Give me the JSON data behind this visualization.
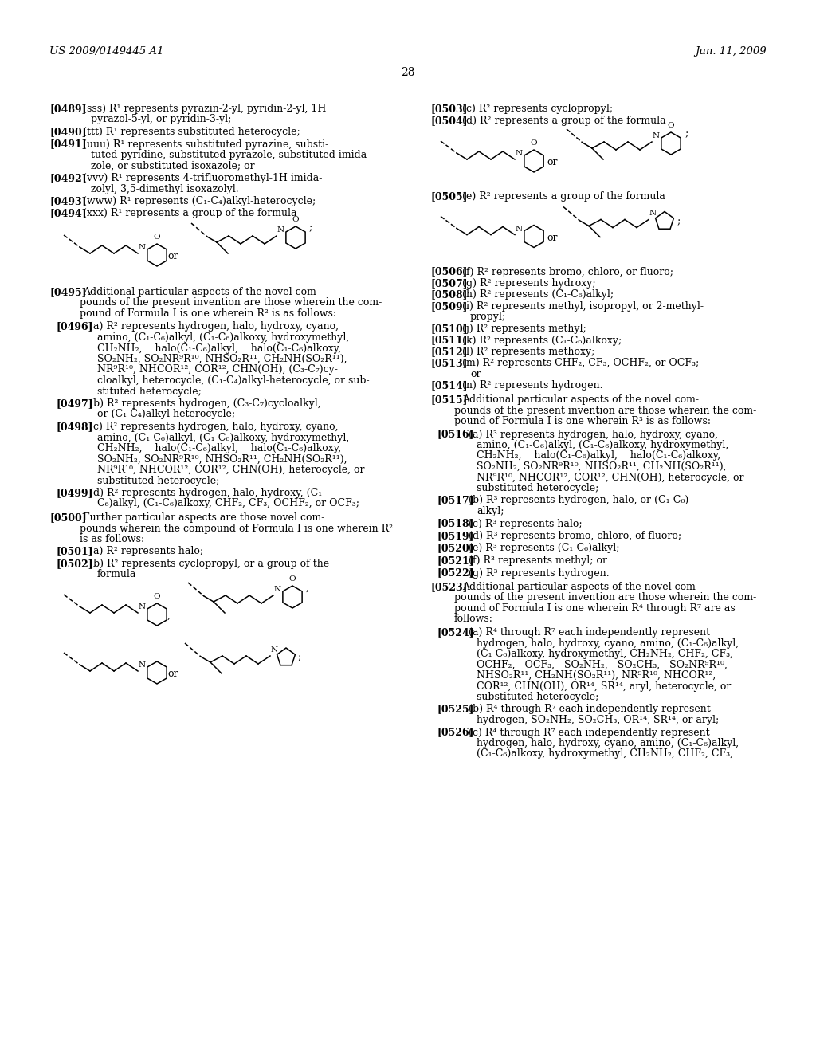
{
  "header_left": "US 2009/0149445 A1",
  "header_right": "Jun. 11, 2009",
  "page_number": "28",
  "bg": "#ffffff"
}
